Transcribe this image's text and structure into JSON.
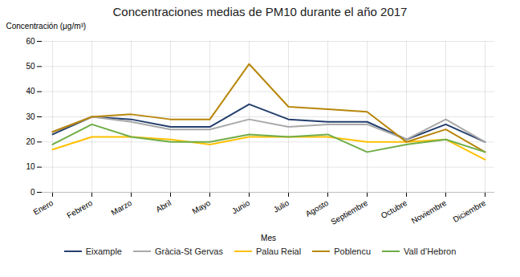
{
  "chart_data": {
    "type": "line",
    "title": "Concentraciones medias de PM10 durante el año 2017",
    "x_label": "Mes",
    "y_label": "Concentración (μg/m³)",
    "categories": [
      "Enero",
      "Febrero",
      "Marzo",
      "Abril",
      "Mayo",
      "Junio",
      "Julio",
      "Agosto",
      "Septiembre",
      "Octubre",
      "Noviembre",
      "Diciembre"
    ],
    "series": [
      {
        "name": "Eixample",
        "color": "#243F6E",
        "values": [
          23,
          30,
          29,
          26,
          26,
          35,
          29,
          28,
          28,
          21,
          27,
          20
        ]
      },
      {
        "name": "Gràcia-St Gervas",
        "color": "#A9A9A9",
        "values": [
          24,
          30,
          28,
          25,
          25,
          29,
          26,
          27,
          27,
          21,
          29,
          20
        ]
      },
      {
        "name": "Palau Reial",
        "color": "#FFC000",
        "values": [
          17,
          22,
          22,
          21,
          19,
          22,
          22,
          22,
          20,
          20,
          21,
          13
        ]
      },
      {
        "name": "Poblencu",
        "color": "#B8860B",
        "values": [
          24,
          30,
          31,
          29,
          29,
          51,
          34,
          33,
          32,
          20,
          25,
          16
        ]
      },
      {
        "name": "Vall d’Hebron",
        "color": "#70AD47",
        "values": [
          19,
          27,
          22,
          20,
          20,
          23,
          22,
          23,
          16,
          19,
          21,
          16
        ]
      }
    ],
    "ylim": [
      0,
      60
    ],
    "yticks": [
      0,
      10,
      20,
      30,
      40,
      50,
      60
    ],
    "grid": true,
    "legend": "bottom"
  }
}
